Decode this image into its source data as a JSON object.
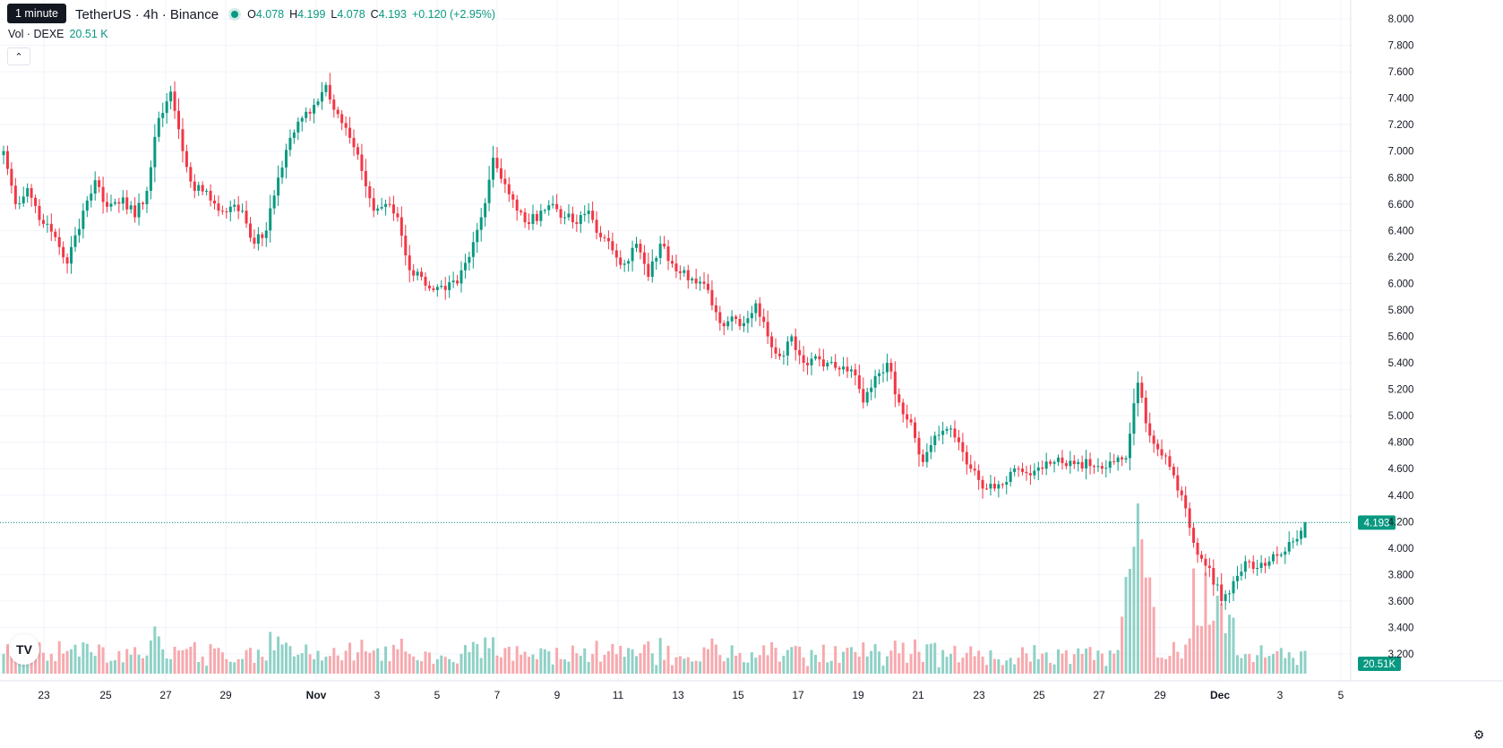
{
  "header": {
    "tooltip": "1 minute",
    "symbol_title": "TetherUS · 4h · Binance",
    "ohlc": {
      "o_label": "O",
      "o": "4.078",
      "h_label": "H",
      "h": "4.199",
      "l_label": "L",
      "l": "4.078",
      "c_label": "C",
      "c": "4.193"
    },
    "change": "+0.120 (+2.95%)",
    "volume_label": "Vol · DEXE",
    "volume_value": "20.51 K"
  },
  "icons": {
    "collapse": "chevron-up-icon",
    "logo": "tradingview-logo-icon",
    "settings": "gear-icon"
  },
  "colors": {
    "up": "#089981",
    "down": "#f23645",
    "up_vol": "#8fd1c6",
    "down_vol": "#f7a9ae",
    "grid": "#f0f3fa"
  },
  "chart_data": {
    "type": "candlestick",
    "ylim": [
      3.1,
      8.05
    ],
    "y_ticks": [
      "8.000",
      "7.800",
      "7.600",
      "7.400",
      "7.200",
      "7.000",
      "6.800",
      "6.600",
      "6.400",
      "6.200",
      "6.000",
      "5.800",
      "5.600",
      "5.400",
      "5.200",
      "5.000",
      "4.800",
      "4.600",
      "4.400",
      "4.200",
      "4.000",
      "3.800",
      "3.600",
      "3.400",
      "3.200"
    ],
    "x_ticks": [
      "23",
      "25",
      "27",
      "29",
      "Nov",
      "3",
      "5",
      "7",
      "9",
      "11",
      "13",
      "15",
      "17",
      "19",
      "21",
      "23",
      "25",
      "27",
      "29",
      "Dec",
      "3",
      "5"
    ],
    "last_price": "4.193",
    "last_price_value": 4.193,
    "last_volume_label": "20.51K",
    "anchors": [
      [
        0,
        7.0
      ],
      [
        3,
        6.6
      ],
      [
        6,
        6.72
      ],
      [
        10,
        6.45
      ],
      [
        13,
        6.35
      ],
      [
        16,
        6.15
      ],
      [
        20,
        6.55
      ],
      [
        23,
        6.78
      ],
      [
        26,
        6.58
      ],
      [
        30,
        6.65
      ],
      [
        33,
        6.5
      ],
      [
        36,
        6.7
      ],
      [
        39,
        7.25
      ],
      [
        42,
        7.45
      ],
      [
        45,
        7.0
      ],
      [
        48,
        6.7
      ],
      [
        51,
        6.7
      ],
      [
        54,
        6.55
      ],
      [
        57,
        6.58
      ],
      [
        60,
        6.55
      ],
      [
        63,
        6.3
      ],
      [
        66,
        6.4
      ],
      [
        69,
        6.8
      ],
      [
        72,
        7.1
      ],
      [
        75,
        7.25
      ],
      [
        78,
        7.35
      ],
      [
        81,
        7.5
      ],
      [
        84,
        7.28
      ],
      [
        87,
        7.1
      ],
      [
        90,
        6.85
      ],
      [
        93,
        6.55
      ],
      [
        96,
        6.6
      ],
      [
        99,
        6.5
      ],
      [
        102,
        6.1
      ],
      [
        105,
        6.05
      ],
      [
        108,
        5.95
      ],
      [
        111,
        5.95
      ],
      [
        114,
        6.0
      ],
      [
        117,
        6.2
      ],
      [
        120,
        6.5
      ],
      [
        123,
        6.95
      ],
      [
        126,
        6.75
      ],
      [
        129,
        6.55
      ],
      [
        132,
        6.45
      ],
      [
        135,
        6.55
      ],
      [
        138,
        6.6
      ],
      [
        141,
        6.5
      ],
      [
        144,
        6.45
      ],
      [
        147,
        6.55
      ],
      [
        150,
        6.35
      ],
      [
        153,
        6.25
      ],
      [
        156,
        6.15
      ],
      [
        159,
        6.3
      ],
      [
        162,
        6.05
      ],
      [
        165,
        6.3
      ],
      [
        168,
        6.15
      ],
      [
        171,
        6.1
      ],
      [
        174,
        6.0
      ],
      [
        177,
        5.95
      ],
      [
        180,
        5.7
      ],
      [
        183,
        5.75
      ],
      [
        186,
        5.7
      ],
      [
        189,
        5.85
      ],
      [
        192,
        5.6
      ],
      [
        195,
        5.45
      ],
      [
        198,
        5.6
      ],
      [
        201,
        5.4
      ],
      [
        204,
        5.45
      ],
      [
        207,
        5.4
      ],
      [
        210,
        5.35
      ],
      [
        213,
        5.35
      ],
      [
        216,
        5.1
      ],
      [
        219,
        5.3
      ],
      [
        222,
        5.4
      ],
      [
        225,
        5.1
      ],
      [
        228,
        4.95
      ],
      [
        231,
        4.65
      ],
      [
        234,
        4.85
      ],
      [
        237,
        4.9
      ],
      [
        240,
        4.8
      ],
      [
        243,
        4.6
      ],
      [
        246,
        4.45
      ],
      [
        249,
        4.45
      ],
      [
        252,
        4.5
      ],
      [
        255,
        4.6
      ],
      [
        258,
        4.55
      ],
      [
        261,
        4.6
      ],
      [
        264,
        4.65
      ],
      [
        267,
        4.62
      ],
      [
        270,
        4.65
      ],
      [
        273,
        4.62
      ],
      [
        276,
        4.6
      ],
      [
        279,
        4.65
      ],
      [
        282,
        4.68
      ],
      [
        285,
        5.25
      ],
      [
        288,
        4.85
      ],
      [
        291,
        4.7
      ],
      [
        294,
        4.55
      ],
      [
        297,
        4.3
      ],
      [
        300,
        3.95
      ],
      [
        303,
        3.85
      ],
      [
        306,
        3.6
      ],
      [
        309,
        3.75
      ],
      [
        312,
        3.9
      ],
      [
        315,
        3.85
      ],
      [
        318,
        3.9
      ],
      [
        321,
        3.95
      ],
      [
        324,
        4.05
      ],
      [
        327,
        4.193
      ]
    ]
  }
}
